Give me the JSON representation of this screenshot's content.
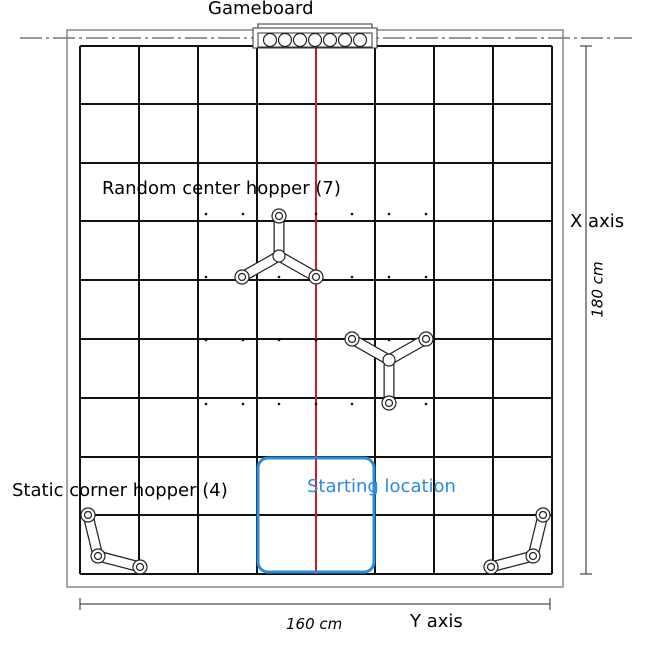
{
  "labels": {
    "gameboard": "Gameboard",
    "random_hopper": "Random center hopper (7)",
    "static_hopper": "Static corner hopper (4)",
    "starting_location": "Starting location",
    "x_axis": "X axis",
    "y_axis": "Y axis",
    "x_dimension": "180 cm",
    "y_dimension": "160 cm"
  },
  "gameboard_slots": 7,
  "colors": {
    "grid": "#111111",
    "center_line": "#c81e1e",
    "starting_box": "#2b8be0",
    "border": "#888888"
  }
}
